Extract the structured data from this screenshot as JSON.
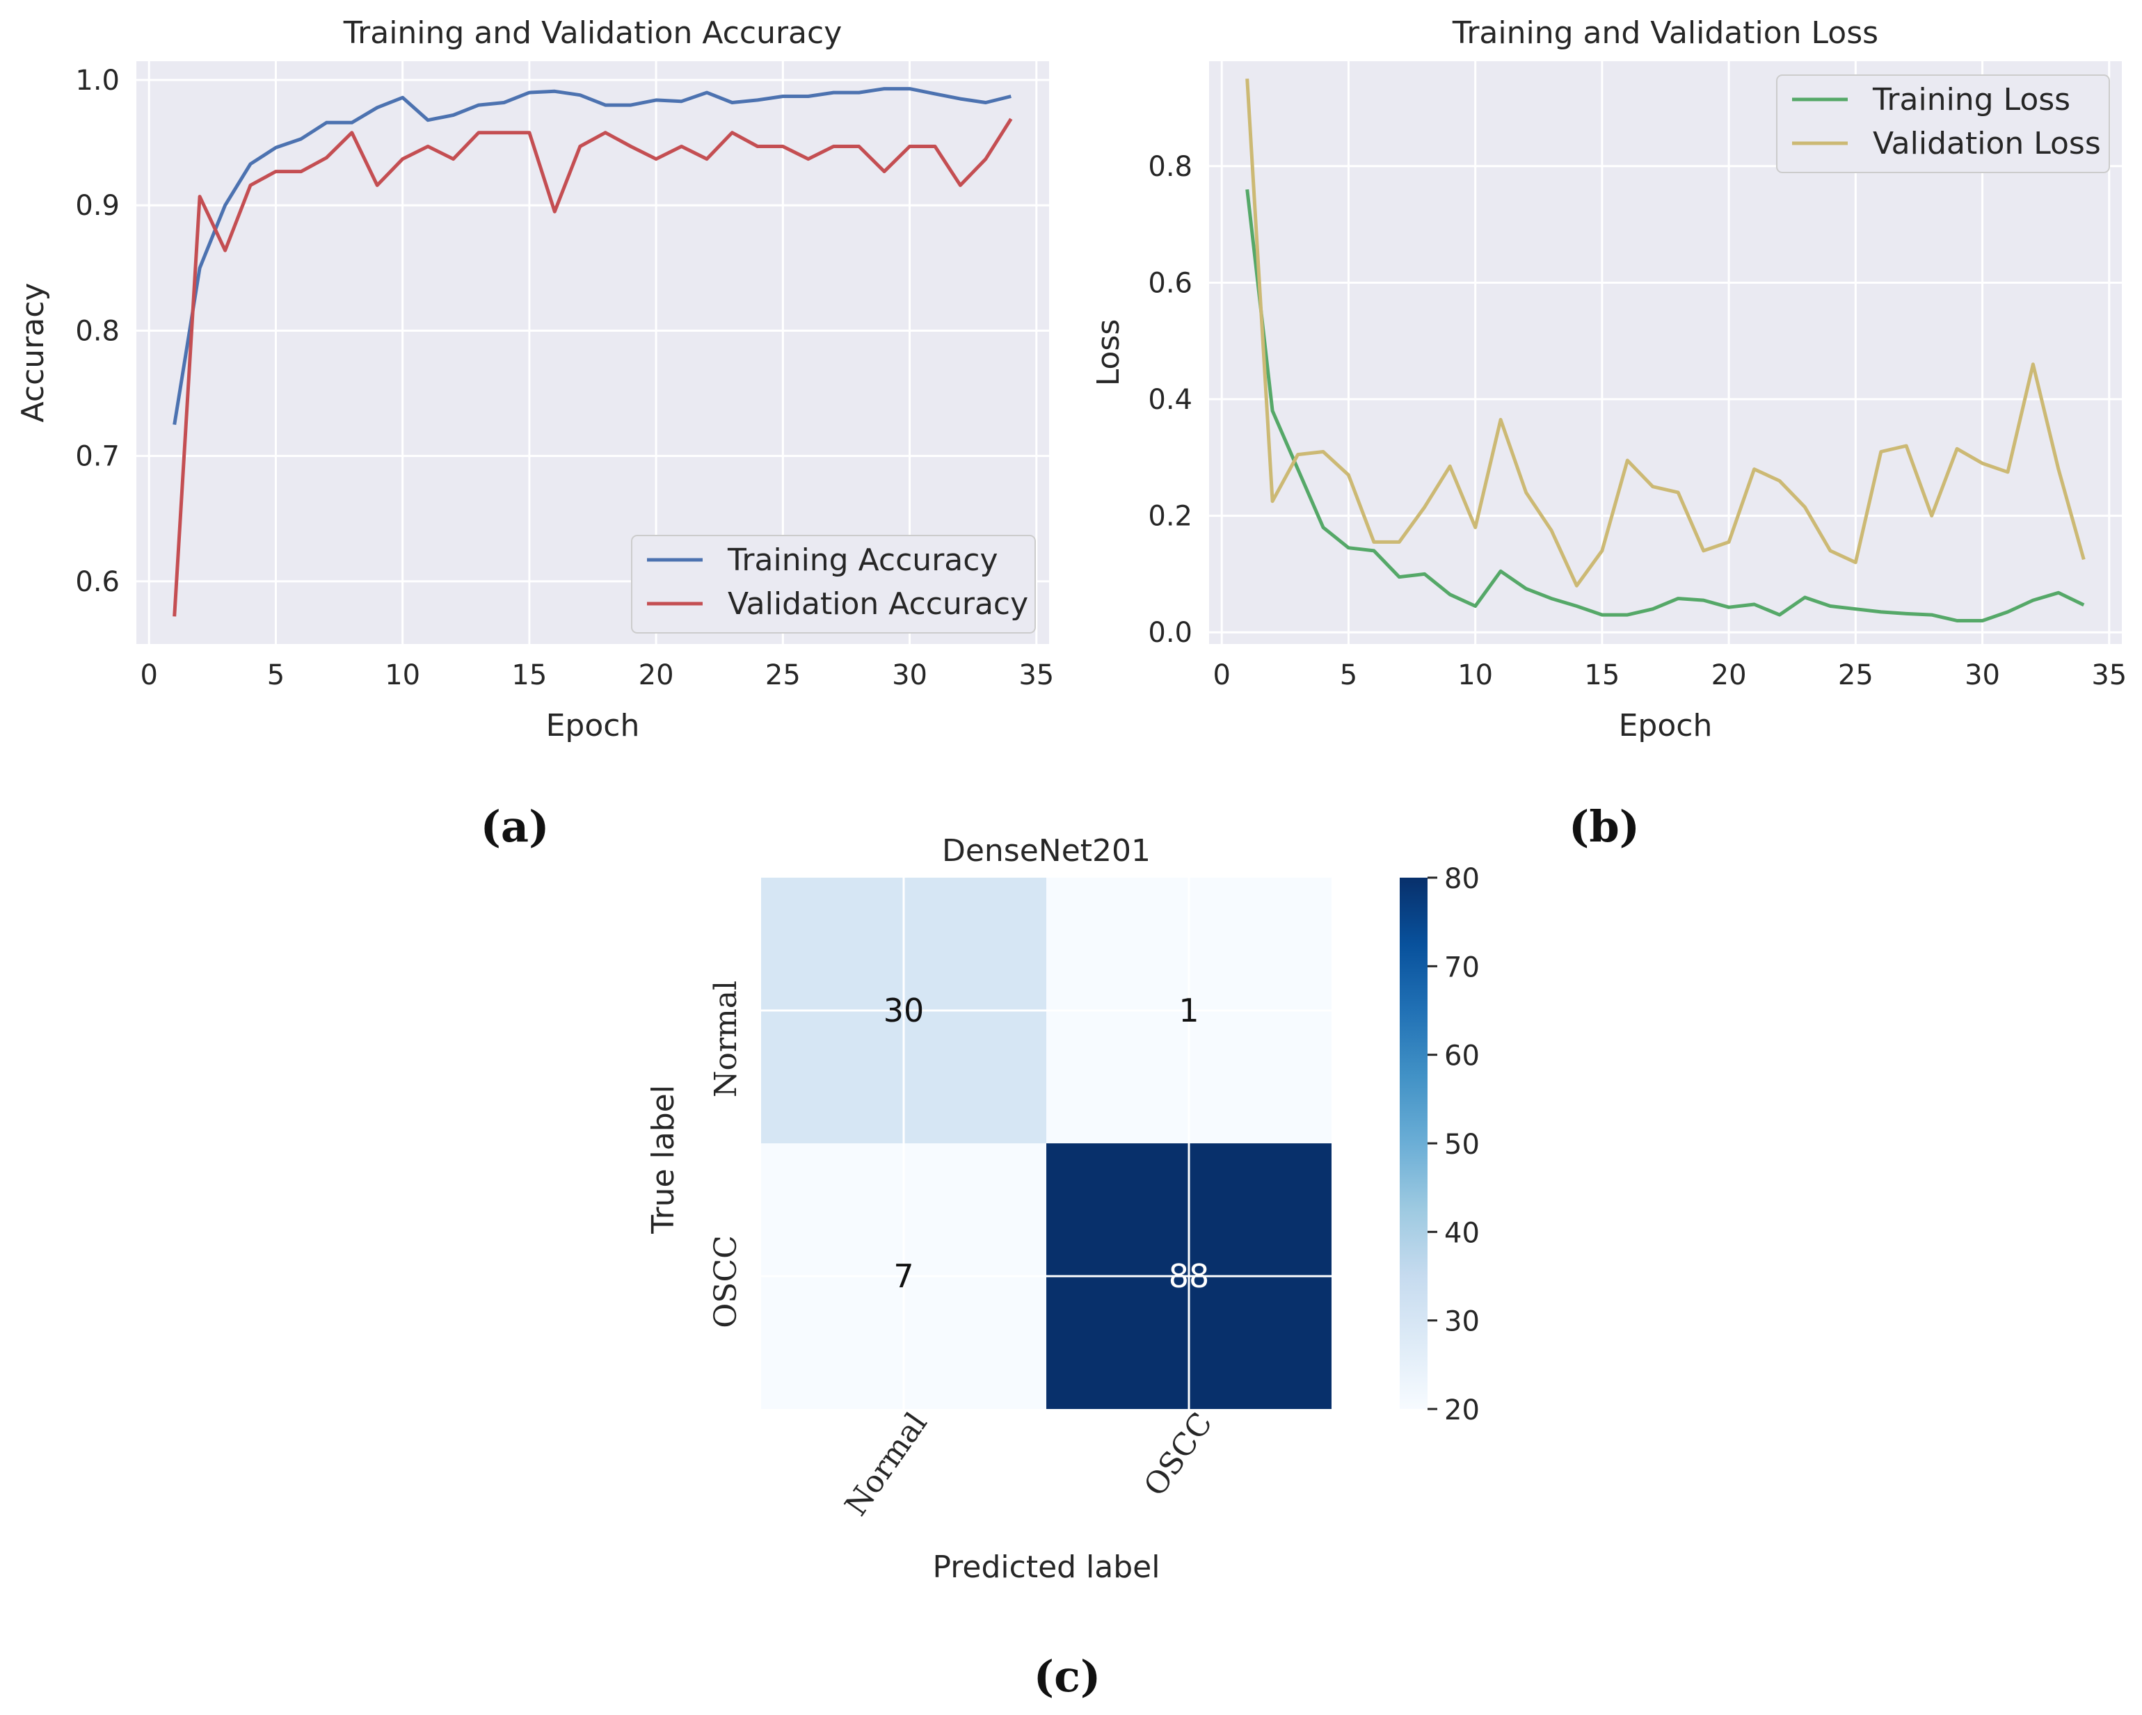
{
  "chart_data": [
    {
      "type": "line",
      "panel_label": "(a)",
      "title": "Training and Validation Accuracy",
      "xlabel": "Epoch",
      "ylabel": "Accuracy",
      "xlim": [
        -0.5,
        35.5
      ],
      "ylim": [
        0.55,
        1.015
      ],
      "xticks": [
        "0",
        "5",
        "10",
        "15",
        "20",
        "25",
        "30",
        "35"
      ],
      "yticks": [
        "0.6",
        "0.7",
        "0.8",
        "0.9",
        "1.0"
      ],
      "grid": true,
      "legend_position": "lower-right",
      "x": [
        1,
        2,
        3,
        4,
        5,
        6,
        7,
        8,
        9,
        10,
        11,
        12,
        13,
        14,
        15,
        16,
        17,
        18,
        19,
        20,
        21,
        22,
        23,
        24,
        25,
        26,
        27,
        28,
        29,
        30,
        31,
        32,
        33,
        34
      ],
      "series": [
        {
          "name": "Training Accuracy",
          "color": "#4c72b0",
          "values": [
            0.725,
            0.85,
            0.9,
            0.933,
            0.946,
            0.953,
            0.966,
            0.966,
            0.978,
            0.986,
            0.968,
            0.972,
            0.98,
            0.982,
            0.99,
            0.991,
            0.988,
            0.98,
            0.98,
            0.984,
            0.983,
            0.99,
            0.982,
            0.984,
            0.987,
            0.987,
            0.99,
            0.99,
            0.993,
            0.993,
            0.989,
            0.985,
            0.982,
            0.987
          ]
        },
        {
          "name": "Validation Accuracy",
          "color": "#c44e52",
          "values": [
            0.572,
            0.907,
            0.864,
            0.916,
            0.927,
            0.927,
            0.938,
            0.958,
            0.916,
            0.937,
            0.947,
            0.937,
            0.958,
            0.958,
            0.958,
            0.895,
            0.947,
            0.958,
            0.947,
            0.937,
            0.947,
            0.937,
            0.958,
            0.947,
            0.947,
            0.937,
            0.947,
            0.947,
            0.927,
            0.947,
            0.947,
            0.916,
            0.937,
            0.969
          ]
        }
      ]
    },
    {
      "type": "line",
      "panel_label": "(b)",
      "title": "Training and Validation Loss",
      "xlabel": "Epoch",
      "ylabel": "Loss",
      "xlim": [
        -0.5,
        35.5
      ],
      "ylim": [
        -0.02,
        0.98
      ],
      "xticks": [
        "0",
        "5",
        "10",
        "15",
        "20",
        "25",
        "30",
        "35"
      ],
      "yticks": [
        "0.0",
        "0.2",
        "0.4",
        "0.6",
        "0.8"
      ],
      "grid": true,
      "legend_position": "upper-right",
      "x": [
        1,
        2,
        3,
        4,
        5,
        6,
        7,
        8,
        9,
        10,
        11,
        12,
        13,
        14,
        15,
        16,
        17,
        18,
        19,
        20,
        21,
        22,
        23,
        24,
        25,
        26,
        27,
        28,
        29,
        30,
        31,
        32,
        33,
        34
      ],
      "series": [
        {
          "name": "Training Loss",
          "color": "#55a868",
          "values": [
            0.76,
            0.38,
            0.28,
            0.18,
            0.145,
            0.14,
            0.095,
            0.1,
            0.065,
            0.045,
            0.105,
            0.075,
            0.058,
            0.045,
            0.03,
            0.03,
            0.04,
            0.058,
            0.055,
            0.043,
            0.048,
            0.03,
            0.06,
            0.045,
            0.04,
            0.035,
            0.032,
            0.03,
            0.02,
            0.02,
            0.035,
            0.055,
            0.068,
            0.047
          ]
        },
        {
          "name": "Validation Loss",
          "color": "#ccb974",
          "values": [
            0.95,
            0.225,
            0.305,
            0.31,
            0.27,
            0.155,
            0.155,
            0.215,
            0.285,
            0.18,
            0.365,
            0.24,
            0.175,
            0.08,
            0.14,
            0.295,
            0.25,
            0.24,
            0.14,
            0.155,
            0.28,
            0.26,
            0.215,
            0.14,
            0.12,
            0.31,
            0.32,
            0.2,
            0.315,
            0.29,
            0.275,
            0.46,
            0.28,
            0.125
          ]
        }
      ]
    },
    {
      "type": "heatmap",
      "panel_label": "(c)",
      "title": "DenseNet201",
      "xlabel": "Predicted label",
      "ylabel": "True label",
      "row_labels": [
        "Normal",
        "OSCC"
      ],
      "col_labels": [
        "Normal",
        "OSCC"
      ],
      "values": [
        [
          30,
          1
        ],
        [
          7,
          88
        ]
      ],
      "colormap": "Blues",
      "color_range": [
        20,
        80
      ],
      "colorbar_ticks": [
        "20",
        "30",
        "40",
        "50",
        "60",
        "70",
        "80"
      ],
      "colors": {
        "low": "#f7fbff",
        "high": "#08306b"
      }
    }
  ]
}
